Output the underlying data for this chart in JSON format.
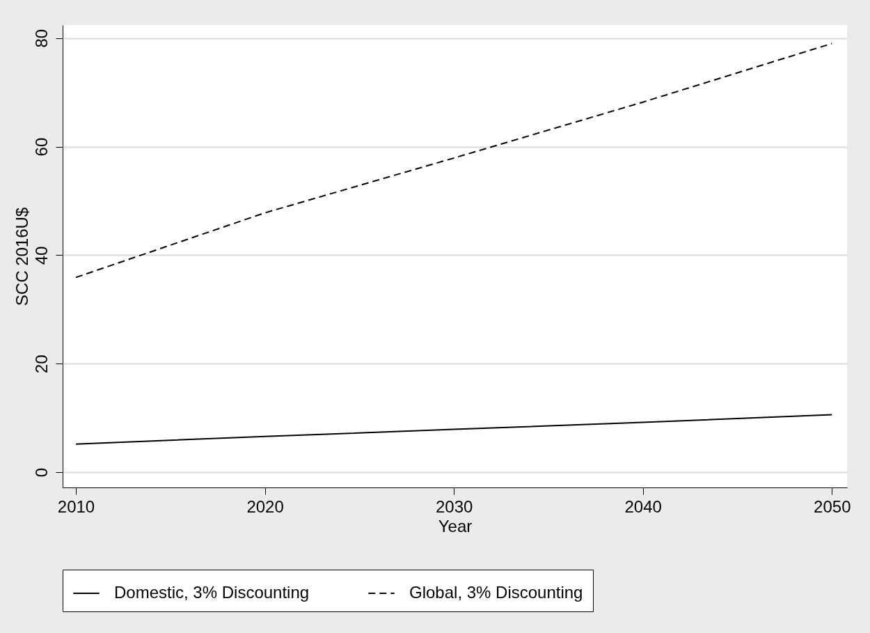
{
  "chart_data": {
    "type": "line",
    "xlabel": "Year",
    "ylabel": "SCC 2016U$",
    "x": [
      2010,
      2020,
      2030,
      2040,
      2050
    ],
    "series": [
      {
        "name": "Domestic, 3% Discounting",
        "color": "#000000",
        "line_style": "solid",
        "values": [
          5.2,
          6.6,
          7.9,
          9.2,
          10.6
        ]
      },
      {
        "name": "Global, 3% Discounting",
        "color": "#000000",
        "line_style": "dashed",
        "values": [
          35.9,
          47.8,
          57.9,
          68.2,
          79.0
        ]
      }
    ],
    "xlim": [
      2009.3,
      2050.8
    ],
    "xticks": [
      2010,
      2020,
      2030,
      2040,
      2050
    ],
    "ylim": [
      -2.8,
      82.4
    ],
    "yticks": [
      0,
      20,
      40,
      60,
      80
    ],
    "grid": "y",
    "legend": "bottom",
    "marker": "none"
  }
}
